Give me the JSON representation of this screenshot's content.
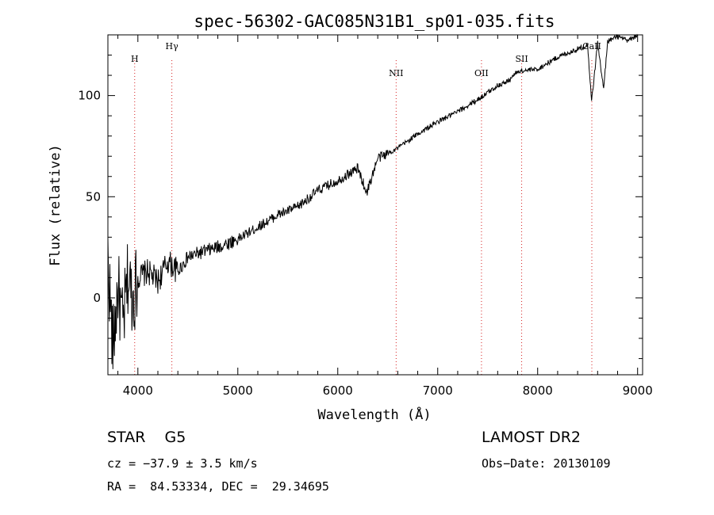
{
  "chart_data": {
    "type": "line",
    "title": "spec-56302-GAC085N31B1_sp01-035.fits",
    "xlabel": "Wavelength (Å)",
    "ylabel": "Flux (relative)",
    "xlim": [
      3700,
      9050
    ],
    "ylim": [
      -38,
      130
    ],
    "x_ticks": [
      4000,
      5000,
      6000,
      7000,
      8000,
      9000
    ],
    "y_ticks": [
      0,
      50,
      100
    ],
    "grid": false,
    "line_markers": [
      {
        "label": "H",
        "x": 3968
      },
      {
        "label": "Hγ",
        "x": 4340
      },
      {
        "label": "NII",
        "x": 6584
      },
      {
        "label": "OII",
        "x": 7438
      },
      {
        "label": "SII",
        "x": 7840
      },
      {
        "label": "CaII",
        "x": 8542
      }
    ],
    "series": [
      {
        "name": "spectrum",
        "color": "#000000",
        "x": [
          3700,
          3750,
          3800,
          3850,
          3900,
          3950,
          4000,
          4100,
          4200,
          4300,
          4400,
          4500,
          4600,
          4800,
          5000,
          5200,
          5400,
          5600,
          5800,
          6000,
          6200,
          6290,
          6400,
          6600,
          6800,
          7000,
          7200,
          7400,
          7600,
          7700,
          7800,
          8000,
          8200,
          8400,
          8500,
          8540,
          8600,
          8660,
          8700,
          8800,
          8900,
          9000
        ],
        "y": [
          20,
          -25,
          5,
          -15,
          10,
          0,
          10,
          13,
          8,
          18,
          13,
          20,
          22,
          25,
          29,
          35,
          41,
          45,
          53,
          58,
          64,
          52,
          69,
          74,
          81,
          87,
          92,
          98,
          105,
          107,
          112,
          113,
          119,
          123,
          125,
          97,
          126,
          103,
          127,
          129,
          127,
          130
        ]
      }
    ]
  },
  "footer": {
    "class_label": "STAR    G5",
    "survey": "LAMOST DR2",
    "cz": "cz = −37.9 ± 3.5 km/s",
    "obs_date": "Obs−Date: 20130109",
    "radec": "RA =  84.53334, DEC =  29.34695"
  }
}
